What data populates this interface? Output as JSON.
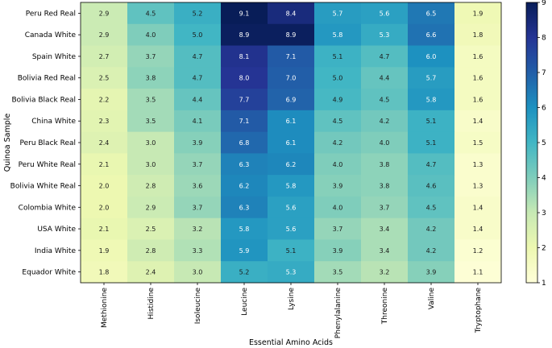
{
  "chart_data": {
    "type": "heatmap",
    "title": "",
    "xlabel": "Essential Amino Acids",
    "ylabel": "Quinoa Sample",
    "columns": [
      "Methionine",
      "Histidine",
      "Isoleucine",
      "Leucine",
      "Lysine",
      "Phenylalanine",
      "Threonine",
      "Valine",
      "Tryptophane"
    ],
    "rows": [
      "Peru Red Real",
      "Canada White",
      "Spain White",
      "Bolivia Red Real",
      "Bolivia Black Real",
      "China White",
      "Peru Black Real",
      "Peru White Real",
      "Bolivia White Real",
      "Colombia White",
      "USA White",
      "India White",
      "Equador White"
    ],
    "values": [
      [
        2.9,
        4.5,
        5.2,
        9.1,
        8.4,
        5.7,
        5.6,
        6.5,
        1.9
      ],
      [
        2.9,
        4.0,
        5.0,
        8.9,
        8.9,
        5.8,
        5.3,
        6.6,
        1.8
      ],
      [
        2.7,
        3.7,
        4.7,
        8.1,
        7.1,
        5.1,
        4.7,
        6.0,
        1.6
      ],
      [
        2.5,
        3.8,
        4.7,
        8.0,
        7.0,
        5.0,
        4.4,
        5.7,
        1.6
      ],
      [
        2.2,
        3.5,
        4.4,
        7.7,
        6.9,
        4.9,
        4.5,
        5.8,
        1.6
      ],
      [
        2.3,
        3.5,
        4.1,
        7.1,
        6.1,
        4.5,
        4.2,
        5.1,
        1.4
      ],
      [
        2.4,
        3.0,
        3.9,
        6.8,
        6.1,
        4.2,
        4.0,
        5.1,
        1.5
      ],
      [
        2.1,
        3.0,
        3.7,
        6.3,
        6.2,
        4.0,
        3.8,
        4.7,
        1.3
      ],
      [
        2.0,
        2.8,
        3.6,
        6.2,
        5.8,
        3.9,
        3.8,
        4.6,
        1.3
      ],
      [
        2.0,
        2.9,
        3.7,
        6.3,
        5.6,
        4.0,
        3.7,
        4.5,
        1.4
      ],
      [
        2.1,
        2.5,
        3.2,
        5.8,
        5.6,
        3.7,
        3.4,
        4.2,
        1.4
      ],
      [
        1.9,
        2.8,
        3.3,
        5.9,
        5.1,
        3.9,
        3.4,
        4.2,
        1.2
      ],
      [
        1.8,
        2.4,
        3.0,
        5.2,
        5.3,
        3.5,
        3.2,
        3.9,
        1.1
      ]
    ],
    "colorbar": {
      "min": 1,
      "max": 9,
      "ticks": [
        1,
        2,
        3,
        4,
        5,
        6,
        7,
        8,
        9
      ]
    },
    "colormap": "YlGnBu",
    "colormap_stops": [
      "#ffffd9",
      "#edf8b1",
      "#c7e9b4",
      "#7fcdbb",
      "#41b6c4",
      "#1d91c0",
      "#225ea8",
      "#253494",
      "#081d58"
    ],
    "annotations": "cell values shown with one decimal"
  }
}
